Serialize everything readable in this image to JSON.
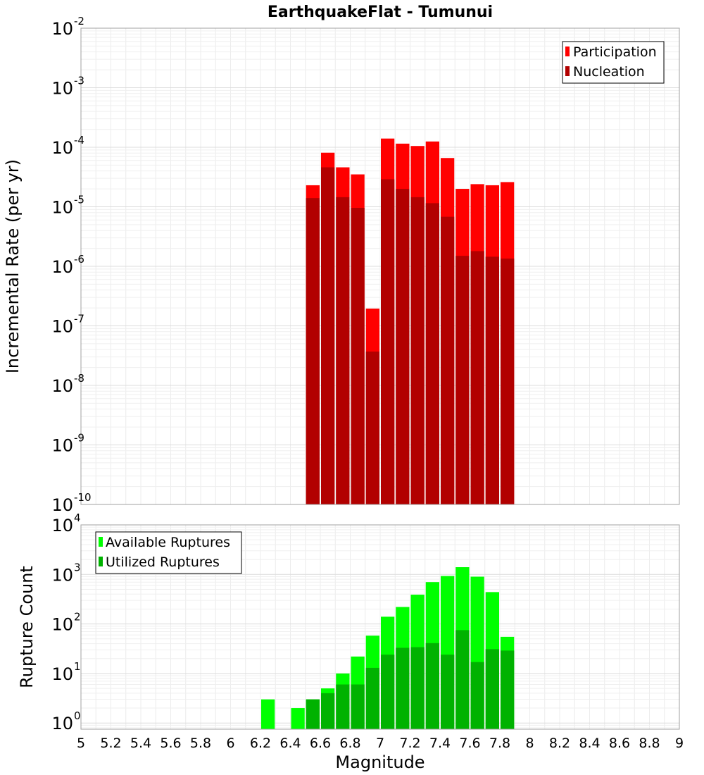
{
  "chart_data": [
    {
      "type": "bar",
      "title": "EarthquakeFlat - Tumunui",
      "xlabel": "",
      "ylabel": "Incremental Rate (per yr)",
      "xlim": [
        5,
        9
      ],
      "ylim": [
        1e-10,
        0.01
      ],
      "yscale": "log",
      "y_ticks": [
        {
          "base": "10",
          "exp": "-10",
          "value": 1e-10
        },
        {
          "base": "10",
          "exp": "-9",
          "value": 1e-09
        },
        {
          "base": "10",
          "exp": "-8",
          "value": 1e-08
        },
        {
          "base": "10",
          "exp": "-7",
          "value": 1e-07
        },
        {
          "base": "10",
          "exp": "-6",
          "value": 1e-06
        },
        {
          "base": "10",
          "exp": "-5",
          "value": 1e-05
        },
        {
          "base": "10",
          "exp": "-4",
          "value": 0.0001
        },
        {
          "base": "10",
          "exp": "-3",
          "value": 0.001
        },
        {
          "base": "10",
          "exp": "-2",
          "value": 0.01
        }
      ],
      "grid": true,
      "legend_position": "top-right",
      "bin_width": 0.1,
      "x": [
        6.55,
        6.65,
        6.75,
        6.85,
        6.95,
        7.05,
        7.15,
        7.25,
        7.35,
        7.45,
        7.55,
        7.65,
        7.75,
        7.85
      ],
      "series": [
        {
          "name": "Participation",
          "color": "#ff0000",
          "values": [
            2.3e-05,
            8.1e-05,
            4.6e-05,
            3.5e-05,
            1.95e-07,
            0.00014,
            0.000115,
            0.000105,
            0.000125,
            6.6e-05,
            2e-05,
            2.4e-05,
            2.3e-05,
            2.6e-05
          ]
        },
        {
          "name": "Nucleation",
          "color": "#b20000",
          "values": [
            1.4e-05,
            4.6e-05,
            1.45e-05,
            9.6e-06,
            3.7e-08,
            2.9e-05,
            2e-05,
            1.45e-05,
            1.15e-05,
            6.8e-06,
            1.5e-06,
            1.8e-06,
            1.45e-06,
            1.35e-06
          ]
        }
      ]
    },
    {
      "type": "bar",
      "title": "",
      "xlabel": "Magnitude",
      "ylabel": "Rupture Count",
      "xlim": [
        5,
        9
      ],
      "ylim": [
        0.75,
        10000.0
      ],
      "yscale": "log",
      "y_ticks": [
        {
          "base": "10",
          "exp": "0",
          "value": 1
        },
        {
          "base": "10",
          "exp": "1",
          "value": 10
        },
        {
          "base": "10",
          "exp": "2",
          "value": 100
        },
        {
          "base": "10",
          "exp": "3",
          "value": 1000
        },
        {
          "base": "10",
          "exp": "4",
          "value": 10000
        }
      ],
      "x_ticks": [
        "5",
        "5.2",
        "5.4",
        "5.6",
        "5.8",
        "6",
        "6.2",
        "6.4",
        "6.6",
        "6.8",
        "7",
        "7.2",
        "7.4",
        "7.6",
        "7.8",
        "8",
        "8.2",
        "8.4",
        "8.6",
        "8.8",
        "9"
      ],
      "grid": true,
      "legend_position": "top-left",
      "bin_width": 0.1,
      "x": [
        6.25,
        6.45,
        6.55,
        6.65,
        6.75,
        6.85,
        6.95,
        7.05,
        7.15,
        7.25,
        7.35,
        7.45,
        7.55,
        7.65,
        7.75,
        7.85
      ],
      "series": [
        {
          "name": "Available Ruptures",
          "color": "#00ff00",
          "values": [
            3,
            2,
            3,
            5,
            10,
            22,
            58,
            140,
            220,
            390,
            700,
            930,
            1400,
            900,
            440,
            55
          ]
        },
        {
          "name": "Utilized Ruptures",
          "color": "#00b200",
          "values": [
            null,
            null,
            3,
            4,
            6,
            6,
            13,
            24,
            33,
            34,
            41,
            24,
            75,
            17,
            31,
            29
          ]
        }
      ]
    }
  ]
}
